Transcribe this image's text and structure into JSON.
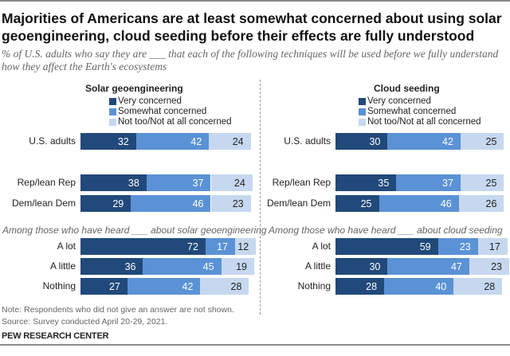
{
  "title": "Majorities of Americans are at least somewhat concerned about using solar geoengineering, cloud seeding before their effects are fully understood",
  "subtitle": "% of U.S. adults who say they are ___ that each of the following techniques will be used before we fully understand how they affect the Earth's ecosystems",
  "note": "Note: Respondents who did not give an answer are not shown.",
  "source": "Source: Survey conducted April 20-29, 2021.",
  "brand": "PEW RESEARCH CENTER",
  "colors": {
    "very": "#21497a",
    "somewhat": "#5a92d5",
    "not": "#c6d8ef"
  },
  "chart_data": [
    {
      "type": "bar",
      "orientation": "horizontal-stacked",
      "title": "Solar geoengineering",
      "legend": [
        "Very concerned",
        "Somewhat concerned",
        "Not too/Not at all concerned"
      ],
      "section_label": "Among those who have heard ___ about solar geoengineering",
      "categories": [
        "U.S. adults",
        "Rep/lean Rep",
        "Dem/lean Dem",
        "A lot",
        "A little",
        "Nothing"
      ],
      "series": [
        {
          "name": "Very concerned",
          "values": [
            32,
            38,
            29,
            72,
            36,
            27
          ]
        },
        {
          "name": "Somewhat concerned",
          "values": [
            42,
            37,
            46,
            17,
            45,
            42
          ]
        },
        {
          "name": "Not too/Not at all concerned",
          "values": [
            24,
            24,
            23,
            12,
            19,
            28
          ]
        }
      ]
    },
    {
      "type": "bar",
      "orientation": "horizontal-stacked",
      "title": "Cloud seeding",
      "legend": [
        "Very concerned",
        "Somewhat concerned",
        "Not too/Not at all concerned"
      ],
      "section_label": "Among those who have heard ___ about cloud seeding",
      "categories": [
        "U.S. adults",
        "Rep/lean Rep",
        "Dem/lean Dem",
        "A lot",
        "A little",
        "Nothing"
      ],
      "series": [
        {
          "name": "Very concerned",
          "values": [
            30,
            35,
            25,
            59,
            30,
            28
          ]
        },
        {
          "name": "Somewhat concerned",
          "values": [
            42,
            37,
            46,
            23,
            47,
            40
          ]
        },
        {
          "name": "Not too/Not at all concerned",
          "values": [
            25,
            25,
            26,
            17,
            23,
            28
          ]
        }
      ]
    }
  ]
}
